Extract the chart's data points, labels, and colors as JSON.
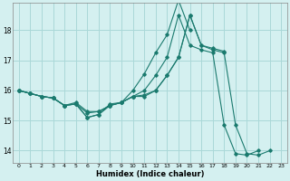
{
  "xlabel": "Humidex (Indice chaleur)",
  "ylabel": "",
  "background_color": "#d4f0f0",
  "grid_color": "#aad8d8",
  "line_color": "#1a7a6e",
  "xlim": [
    -0.5,
    23.5
  ],
  "ylim": [
    13.6,
    18.9
  ],
  "yticks": [
    14,
    15,
    16,
    17,
    18
  ],
  "xticks": [
    0,
    1,
    2,
    3,
    4,
    5,
    6,
    7,
    8,
    9,
    10,
    11,
    12,
    13,
    14,
    15,
    16,
    17,
    18,
    19,
    20,
    21,
    22,
    23
  ],
  "series": [
    {
      "x": [
        0,
        1,
        2,
        3,
        4,
        5,
        6,
        7,
        8,
        9,
        10,
        11,
        12,
        13,
        14,
        15,
        16,
        17,
        18
      ],
      "y": [
        16.0,
        15.9,
        15.8,
        15.75,
        15.5,
        15.55,
        15.1,
        15.2,
        15.55,
        15.6,
        15.8,
        15.8,
        16.0,
        16.5,
        17.1,
        18.5,
        17.5,
        17.4,
        17.3
      ]
    },
    {
      "x": [
        0,
        1,
        2,
        3,
        4,
        5,
        6,
        7,
        8,
        9,
        10,
        11,
        12,
        13,
        14,
        15
      ],
      "y": [
        16.0,
        15.9,
        15.8,
        15.75,
        15.5,
        15.55,
        15.25,
        15.3,
        15.5,
        15.6,
        16.0,
        16.55,
        17.25,
        17.85,
        19.0,
        18.0
      ]
    },
    {
      "x": [
        0,
        1,
        2,
        3,
        4,
        5,
        6,
        7,
        8,
        9,
        10,
        11,
        12,
        13,
        14,
        15,
        16,
        17,
        18,
        19,
        20,
        21,
        22
      ],
      "y": [
        16.0,
        15.9,
        15.8,
        15.75,
        15.5,
        15.6,
        15.3,
        15.3,
        15.5,
        15.6,
        15.8,
        15.85,
        16.0,
        16.5,
        17.1,
        18.5,
        17.5,
        17.35,
        17.25,
        14.85,
        13.9,
        13.85,
        14.0
      ]
    },
    {
      "x": [
        0,
        1,
        2,
        3,
        4,
        5,
        6,
        7,
        8,
        9,
        10,
        11,
        12,
        13,
        14,
        15,
        16,
        17,
        18,
        19,
        20,
        21
      ],
      "y": [
        16.0,
        15.9,
        15.8,
        15.75,
        15.5,
        15.55,
        15.1,
        15.2,
        15.5,
        15.6,
        15.8,
        16.0,
        16.5,
        17.1,
        18.5,
        17.5,
        17.35,
        17.25,
        14.85,
        13.9,
        13.85,
        14.0
      ]
    }
  ]
}
